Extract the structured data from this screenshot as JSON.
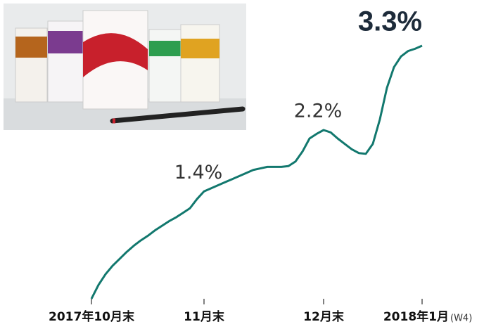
{
  "chart_data": {
    "type": "line",
    "categories": [
      "2017年10月末",
      null,
      null,
      null,
      null,
      null,
      null,
      null,
      null,
      null,
      null,
      null,
      null,
      null,
      null,
      null,
      "11月末",
      null,
      null,
      null,
      null,
      null,
      null,
      null,
      null,
      null,
      null,
      null,
      null,
      null,
      null,
      null,
      null,
      "12月末",
      null,
      null,
      null,
      null,
      null,
      null,
      null,
      null,
      null,
      null,
      null,
      null,
      null,
      "2018年1月"
    ],
    "last_category_note": "(W4)",
    "series": [
      {
        "color": "#12786e",
        "values": [
          0,
          0.18,
          0.32,
          0.43,
          0.52,
          0.61,
          0.69,
          0.76,
          0.82,
          0.89,
          0.95,
          1.01,
          1.06,
          1.12,
          1.18,
          1.3,
          1.4,
          1.44,
          1.48,
          1.52,
          1.56,
          1.6,
          1.64,
          1.68,
          1.7,
          1.72,
          1.72,
          1.72,
          1.73,
          1.79,
          1.92,
          2.09,
          2.15,
          2.2,
          2.17,
          2.09,
          2.02,
          1.95,
          1.9,
          1.89,
          2.02,
          2.34,
          2.75,
          3.02,
          3.16,
          3.23,
          3.26,
          3.3
        ],
        "value_labels": [
          null,
          null,
          null,
          null,
          null,
          null,
          null,
          null,
          null,
          null,
          null,
          null,
          null,
          null,
          null,
          null,
          "1.4%",
          null,
          null,
          null,
          null,
          null,
          null,
          null,
          null,
          null,
          null,
          null,
          null,
          null,
          null,
          null,
          null,
          "2.2%",
          null,
          null,
          null,
          null,
          null,
          null,
          null,
          null,
          null,
          null,
          null,
          null,
          null,
          "3.3%"
        ]
      }
    ],
    "ylim": [
      0,
      3.3
    ]
  }
}
